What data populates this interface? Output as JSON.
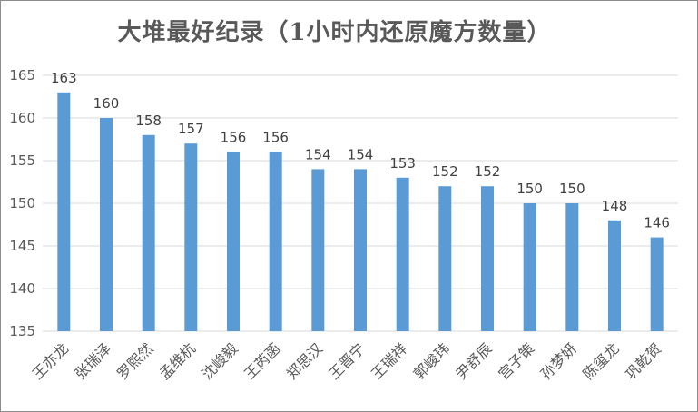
{
  "chart_data": {
    "type": "bar",
    "title": "大堆最好纪录（1小时内还原魔方数量）",
    "xlabel": "",
    "ylabel": "",
    "categories": [
      "王亦龙",
      "张瑞泽",
      "罗熙然",
      "孟维杭",
      "沈峻毅",
      "王芮菡",
      "郑思汉",
      "王晋宁",
      "王瑞祥",
      "郭峻玮",
      "尹舒辰",
      "宫子策",
      "孙梦妍",
      "陈玺龙",
      "巩乾贺"
    ],
    "values": [
      163,
      160,
      158,
      157,
      156,
      156,
      154,
      154,
      153,
      152,
      152,
      150,
      150,
      148,
      146
    ],
    "ylim": [
      135,
      165
    ],
    "yticks": [
      135,
      140,
      145,
      150,
      155,
      160,
      165
    ],
    "grid": true,
    "legend": "none",
    "bar_color": "#5b9bd5",
    "grid_color": "#d9d9d9"
  }
}
